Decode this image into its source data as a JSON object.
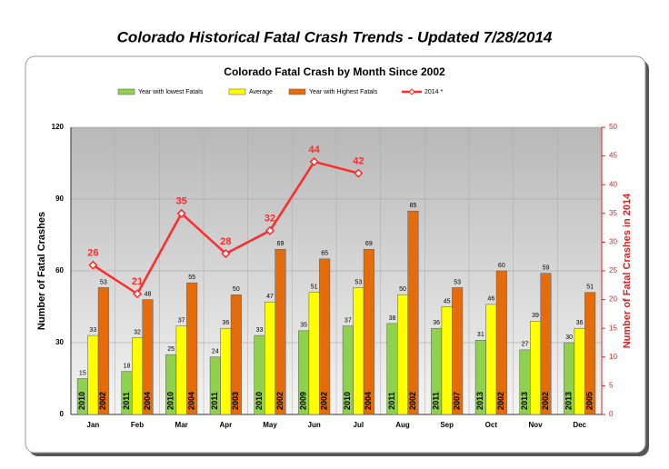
{
  "page_title": "Colorado Historical Fatal Crash Trends - Updated 7/28/2014",
  "chart_data": {
    "type": "bar",
    "title": "Colorado Fatal Crash by Month Since 2002",
    "ylabel": "Number of Fatal Crashes",
    "y2label": "Number of Fatal Crashes in 2014",
    "categories": [
      "Jan",
      "Feb",
      "Mar",
      "Apr",
      "May",
      "Jun",
      "Jul",
      "Aug",
      "Sep",
      "Oct",
      "Nov",
      "Dec"
    ],
    "series": [
      {
        "name": "Year with lowest Fatals",
        "color": "#8fd14f",
        "values": [
          15,
          18,
          25,
          24,
          33,
          35,
          37,
          38,
          36,
          31,
          27,
          30
        ],
        "bar_labels": [
          "2010",
          "2011",
          "2010",
          "2011",
          "2010",
          "2009",
          "2010",
          "2011",
          "2011",
          "2013",
          "2013",
          "2013"
        ]
      },
      {
        "name": "Average",
        "color": "#ffff00",
        "values": [
          33,
          32,
          37,
          36,
          47,
          51,
          53,
          50,
          45,
          46,
          39,
          36
        ]
      },
      {
        "name": "Year with Highest Fatals",
        "color": "#e46c0a",
        "values": [
          53,
          48,
          55,
          50,
          69,
          65,
          69,
          85,
          53,
          60,
          59,
          51
        ],
        "bar_labels": [
          "2002",
          "2004",
          "2004",
          "2003",
          "2002",
          "2002",
          "2004",
          "2002",
          "2007",
          "2002",
          "2002",
          "2005"
        ]
      },
      {
        "name": "2014 *",
        "color": "#ff2a2a",
        "axis": "y2",
        "type": "line",
        "values": [
          26,
          21,
          35,
          28,
          32,
          44,
          42,
          null,
          null,
          null,
          null,
          null
        ]
      }
    ],
    "ylim": [
      0,
      120
    ],
    "yticks": [
      0,
      30,
      60,
      90,
      120
    ],
    "y2lim": [
      0,
      50
    ],
    "y2ticks": [
      0,
      5,
      10,
      15,
      20,
      25,
      30,
      35,
      40,
      45,
      50
    ],
    "grid": true,
    "legend": "top"
  }
}
